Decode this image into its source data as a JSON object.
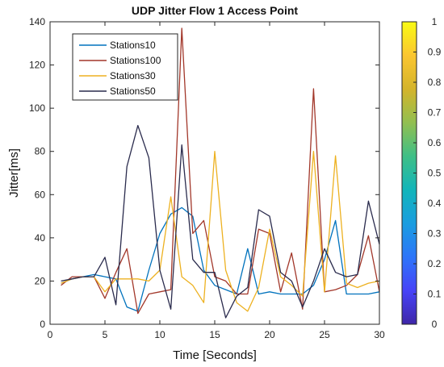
{
  "chart_data": {
    "type": "line",
    "title": "UDP Jitter Flow 1 Access Point",
    "xlabel": "Time [Seconds]",
    "ylabel": "Jitter[ms]",
    "xlim": [
      0,
      30
    ],
    "ylim": [
      0,
      140
    ],
    "xticks": [
      0,
      5,
      10,
      15,
      20,
      25,
      30
    ],
    "yticks": [
      0,
      20,
      40,
      60,
      80,
      100,
      120,
      140
    ],
    "legend_position": "top-left",
    "grid": false,
    "x": [
      1,
      2,
      3,
      4,
      5,
      6,
      7,
      8,
      9,
      10,
      11,
      12,
      13,
      14,
      15,
      16,
      17,
      18,
      19,
      20,
      21,
      22,
      23,
      24,
      25,
      26,
      27,
      28,
      29,
      30
    ],
    "series": [
      {
        "name": "Stations10",
        "color": "#0072bd",
        "values": [
          19,
          21,
          22,
          23,
          22,
          21,
          8,
          6,
          25,
          42,
          51,
          54,
          50,
          25,
          18,
          16,
          14,
          35,
          14,
          15,
          14,
          14,
          14,
          18,
          30,
          48,
          14,
          14,
          14,
          15
        ]
      },
      {
        "name": "Stations100",
        "color": "#a2372a",
        "values": [
          18,
          22,
          22,
          22,
          12,
          24,
          35,
          5,
          14,
          15,
          16,
          137,
          42,
          48,
          22,
          20,
          14,
          14,
          44,
          42,
          15,
          33,
          7,
          109,
          15,
          16,
          18,
          23,
          41,
          15
        ]
      },
      {
        "name": "Stations30",
        "color": "#edb120",
        "values": [
          19,
          21,
          22,
          22,
          15,
          21,
          21,
          21,
          20,
          25,
          59,
          22,
          18,
          10,
          80,
          25,
          10,
          6,
          17,
          44,
          22,
          18,
          13,
          80,
          15,
          78,
          19,
          17,
          19,
          20
        ]
      },
      {
        "name": "Stations50",
        "color": "#2a2b4d",
        "values": [
          20,
          21,
          22,
          22,
          31,
          9,
          73,
          92,
          77,
          25,
          7,
          83,
          30,
          24,
          24,
          3,
          13,
          17,
          53,
          50,
          24,
          20,
          8,
          20,
          35,
          24,
          22,
          23,
          57,
          37
        ]
      }
    ],
    "colorbar": {
      "min": 0,
      "max": 1,
      "ticks": [
        "0",
        "0.1",
        "0.2",
        "0.3",
        "0.4",
        "0.5",
        "0.6",
        "0.7",
        "0.8",
        "0.9",
        "1"
      ],
      "colormap": [
        "#3e26a8",
        "#4743f8",
        "#2d75f9",
        "#1a9de0",
        "#12b5ba",
        "#3fbf86",
        "#92bf50",
        "#d4b42b",
        "#fbc630",
        "#f9fb14"
      ]
    }
  }
}
